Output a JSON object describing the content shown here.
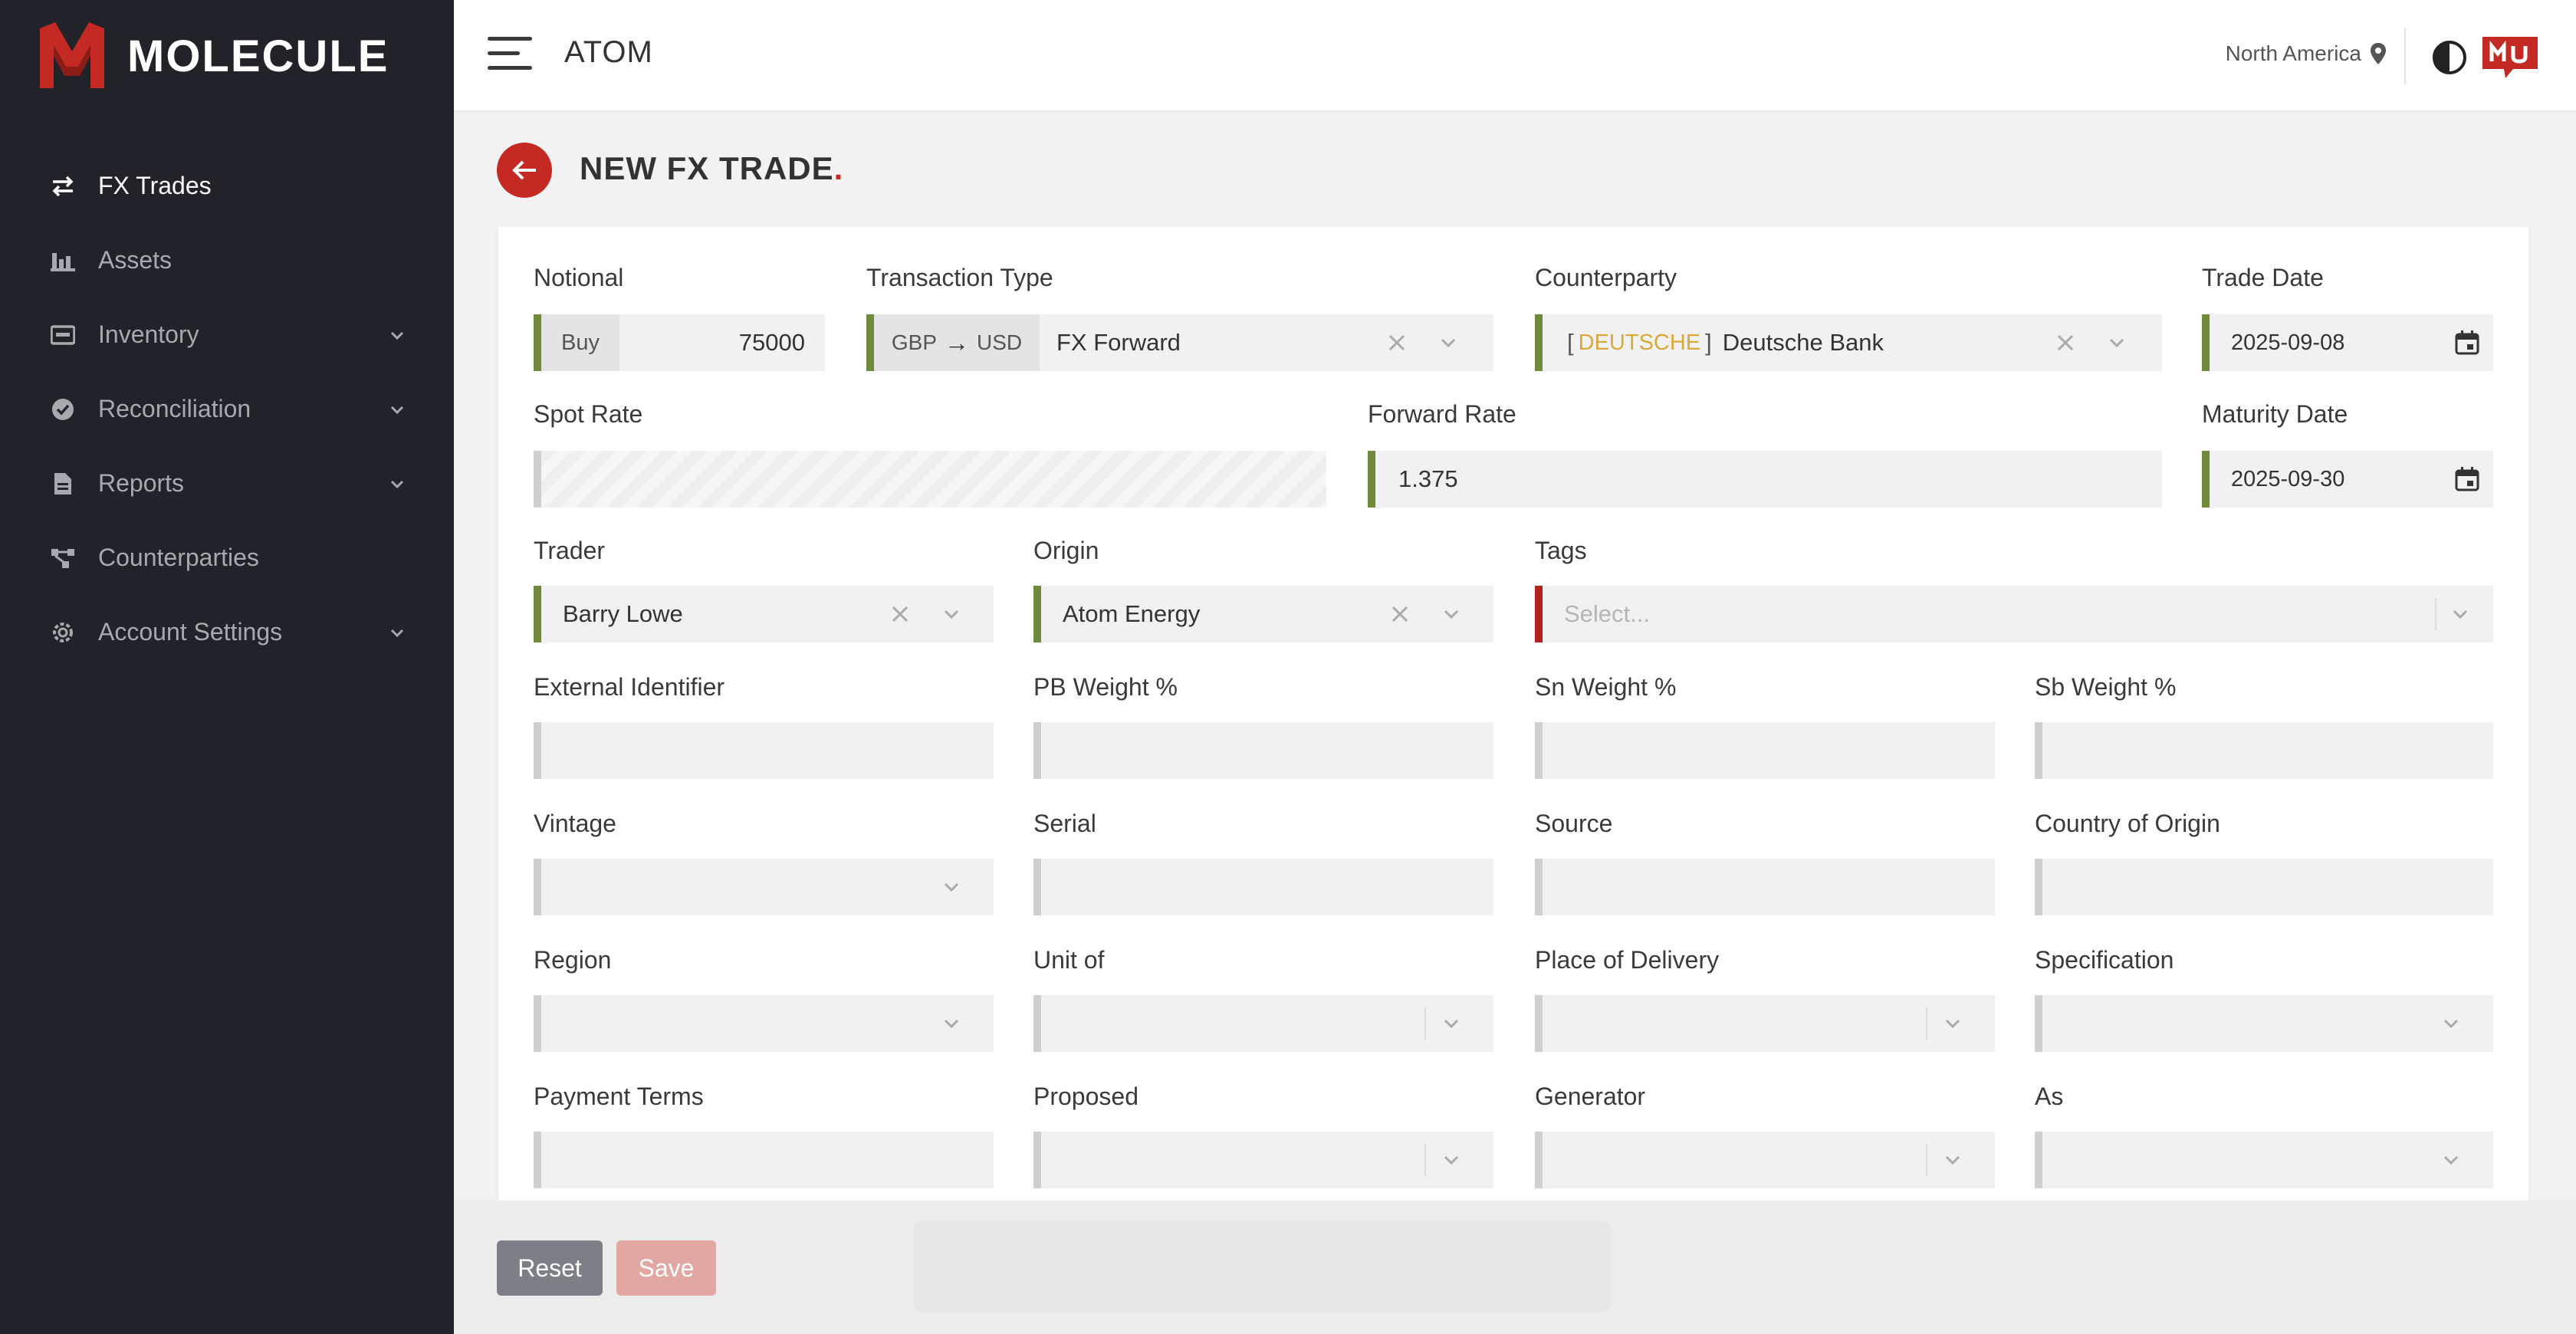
{
  "app": {
    "logo_text": "MOLECULE",
    "brand": "ATOM",
    "region": "North America"
  },
  "sidebar": {
    "items": [
      {
        "label": "FX Trades",
        "icon": "swap-icon",
        "active": true,
        "has_chevron": false
      },
      {
        "label": "Assets",
        "icon": "bar-chart-icon",
        "active": false,
        "has_chevron": false
      },
      {
        "label": "Inventory",
        "icon": "inventory-icon",
        "active": false,
        "has_chevron": true
      },
      {
        "label": "Reconciliation",
        "icon": "check-circle-icon",
        "active": false,
        "has_chevron": true
      },
      {
        "label": "Reports",
        "icon": "document-icon",
        "active": false,
        "has_chevron": true
      },
      {
        "label": "Counterparties",
        "icon": "network-icon",
        "active": false,
        "has_chevron": false
      },
      {
        "label": "Account Settings",
        "icon": "gear-icon",
        "active": false,
        "has_chevron": true
      }
    ]
  },
  "page": {
    "title": "NEW FX TRADE",
    "title_dot": "."
  },
  "form": {
    "notional": {
      "label": "Notional",
      "side": "Buy",
      "value": "75000"
    },
    "transaction_type": {
      "label": "Transaction Type",
      "from_ccy": "GBP",
      "arrow": "→",
      "to_ccy": "USD",
      "value": "FX Forward"
    },
    "counterparty": {
      "label": "Counterparty",
      "bracket_open": "[",
      "code": "DEUTSCHE",
      "bracket_close": "]",
      "value": "Deutsche Bank"
    },
    "trade_date": {
      "label": "Trade Date",
      "value": "2025-09-08"
    },
    "spot_rate": {
      "label": "Spot Rate",
      "value": ""
    },
    "forward_rate": {
      "label": "Forward Rate",
      "value": "1.375"
    },
    "maturity_date": {
      "label": "Maturity Date",
      "value": "2025-09-30"
    },
    "trader": {
      "label": "Trader",
      "value": "Barry Lowe"
    },
    "origin": {
      "label": "Origin",
      "value": "Atom Energy"
    },
    "tags": {
      "label": "Tags",
      "placeholder": "Select..."
    },
    "external_identifier": {
      "label": "External Identifier"
    },
    "pb_weight": {
      "label": "PB Weight %"
    },
    "sn_weight": {
      "label": "Sn Weight %"
    },
    "sb_weight": {
      "label": "Sb Weight %"
    },
    "vintage": {
      "label": "Vintage"
    },
    "serial": {
      "label": "Serial"
    },
    "source": {
      "label": "Source"
    },
    "country_of_origin": {
      "label": "Country of Origin"
    },
    "region": {
      "label": "Region"
    },
    "unit_of": {
      "label": "Unit of"
    },
    "place_of_delivery": {
      "label": "Place of Delivery"
    },
    "specification": {
      "label": "Specification"
    },
    "payment_terms": {
      "label": "Payment Terms"
    },
    "proposed": {
      "label": "Proposed"
    },
    "generator": {
      "label": "Generator"
    },
    "as": {
      "label": "As"
    }
  },
  "actions": {
    "reset_label": "Reset",
    "save_label": "Save"
  },
  "colors": {
    "accent_red": "#c42a23",
    "valid_green": "#6f8a3a",
    "sidebar_bg": "#212329",
    "counterparty_code": "#d9a93a"
  }
}
